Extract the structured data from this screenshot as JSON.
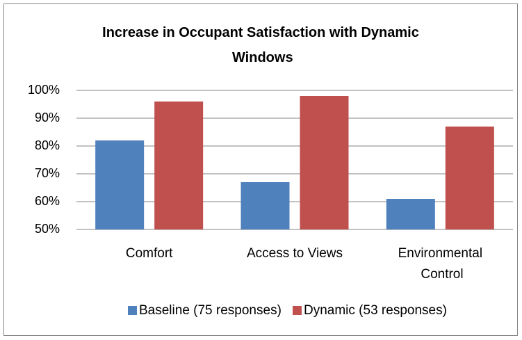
{
  "chart_data": {
    "type": "bar",
    "title": "Increase in Occupant Satisfaction with Dynamic Windows",
    "categories": [
      "Comfort",
      "Access to Views",
      "Environmental Control"
    ],
    "series": [
      {
        "name": "Baseline (75 responses)",
        "color": "#4f81bd",
        "values": [
          82,
          67,
          61
        ]
      },
      {
        "name": "Dynamic (53 responses)",
        "color": "#c0504d",
        "values": [
          96,
          98,
          87
        ]
      }
    ],
    "ylim": [
      50,
      100
    ],
    "yticks": [
      {
        "value": 50,
        "label": "50%"
      },
      {
        "value": 60,
        "label": "60%"
      },
      {
        "value": 70,
        "label": "70%"
      },
      {
        "value": 80,
        "label": "80%"
      },
      {
        "value": 90,
        "label": "90%"
      },
      {
        "value": 100,
        "label": "100%"
      }
    ],
    "grid": true,
    "legend": "bottom"
  }
}
